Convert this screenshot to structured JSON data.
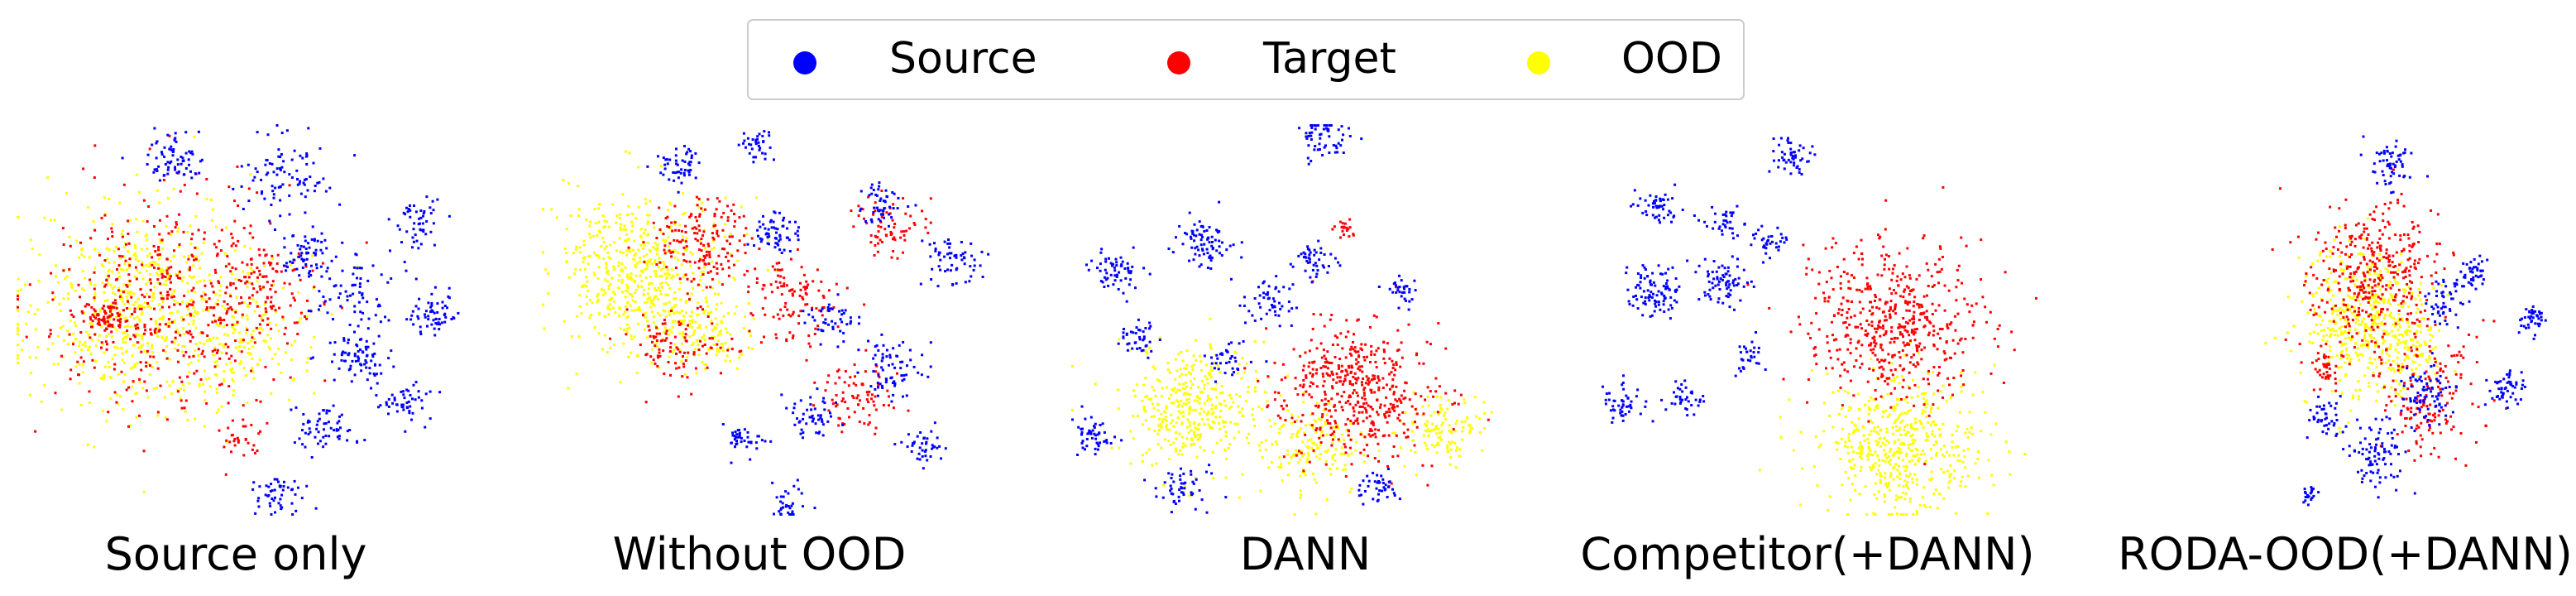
{
  "legend": {
    "placement": "top-center",
    "items": [
      {
        "label": "Source",
        "color": "#0000ff"
      },
      {
        "label": "Target",
        "color": "#ff0000"
      },
      {
        "label": "OOD",
        "color": "#ffff00"
      }
    ]
  },
  "chart_data": [
    {
      "type": "scatter",
      "title": "",
      "caption": "Source only",
      "axes": "off",
      "series": [
        {
          "name": "Source",
          "color": "#0000ff",
          "clusters": [
            {
              "cx": 0.35,
              "cy": 0.08,
              "r": 0.06,
              "n": 70
            },
            {
              "cx": 0.6,
              "cy": 0.13,
              "r": 0.1,
              "n": 90
            },
            {
              "cx": 0.65,
              "cy": 0.33,
              "r": 0.06,
              "n": 60
            },
            {
              "cx": 0.9,
              "cy": 0.25,
              "r": 0.06,
              "n": 50
            },
            {
              "cx": 0.93,
              "cy": 0.48,
              "r": 0.06,
              "n": 60
            },
            {
              "cx": 0.77,
              "cy": 0.6,
              "r": 0.08,
              "n": 80
            },
            {
              "cx": 0.87,
              "cy": 0.72,
              "r": 0.06,
              "n": 50
            },
            {
              "cx": 0.68,
              "cy": 0.78,
              "r": 0.07,
              "n": 60
            },
            {
              "cx": 0.58,
              "cy": 0.95,
              "r": 0.06,
              "n": 50
            },
            {
              "cx": 0.75,
              "cy": 0.42,
              "r": 0.1,
              "n": 70
            }
          ]
        },
        {
          "name": "Target",
          "color": "#ff0000",
          "clusters": [
            {
              "cx": 0.35,
              "cy": 0.45,
              "r": 0.28,
              "n": 420
            },
            {
              "cx": 0.2,
              "cy": 0.5,
              "r": 0.05,
              "n": 80
            },
            {
              "cx": 0.55,
              "cy": 0.4,
              "r": 0.12,
              "n": 100
            },
            {
              "cx": 0.5,
              "cy": 0.8,
              "r": 0.05,
              "n": 30
            }
          ]
        },
        {
          "name": "OOD",
          "color": "#ffff00",
          "clusters": [
            {
              "cx": 0.28,
              "cy": 0.48,
              "r": 0.26,
              "n": 650
            },
            {
              "cx": 0.5,
              "cy": 0.55,
              "r": 0.15,
              "n": 120
            }
          ]
        }
      ]
    },
    {
      "type": "scatter",
      "title": "",
      "caption": "Without OOD",
      "axes": "off",
      "series": [
        {
          "name": "Source",
          "color": "#0000ff",
          "clusters": [
            {
              "cx": 0.3,
              "cy": 0.1,
              "r": 0.05,
              "n": 50
            },
            {
              "cx": 0.48,
              "cy": 0.05,
              "r": 0.04,
              "n": 35
            },
            {
              "cx": 0.52,
              "cy": 0.28,
              "r": 0.06,
              "n": 60
            },
            {
              "cx": 0.75,
              "cy": 0.2,
              "r": 0.06,
              "n": 50
            },
            {
              "cx": 0.92,
              "cy": 0.35,
              "r": 0.07,
              "n": 60
            },
            {
              "cx": 0.65,
              "cy": 0.5,
              "r": 0.06,
              "n": 45
            },
            {
              "cx": 0.78,
              "cy": 0.62,
              "r": 0.08,
              "n": 70
            },
            {
              "cx": 0.6,
              "cy": 0.75,
              "r": 0.06,
              "n": 50
            },
            {
              "cx": 0.85,
              "cy": 0.82,
              "r": 0.05,
              "n": 40
            },
            {
              "cx": 0.45,
              "cy": 0.8,
              "r": 0.05,
              "n": 40
            },
            {
              "cx": 0.55,
              "cy": 0.97,
              "r": 0.05,
              "n": 35
            }
          ]
        },
        {
          "name": "Target",
          "color": "#ff0000",
          "clusters": [
            {
              "cx": 0.35,
              "cy": 0.3,
              "r": 0.12,
              "n": 160
            },
            {
              "cx": 0.55,
              "cy": 0.45,
              "r": 0.12,
              "n": 110
            },
            {
              "cx": 0.78,
              "cy": 0.25,
              "r": 0.08,
              "n": 70
            },
            {
              "cx": 0.7,
              "cy": 0.7,
              "r": 0.1,
              "n": 80
            },
            {
              "cx": 0.3,
              "cy": 0.55,
              "r": 0.12,
              "n": 100
            }
          ]
        },
        {
          "name": "OOD",
          "color": "#ffff00",
          "clusters": [
            {
              "cx": 0.22,
              "cy": 0.38,
              "r": 0.19,
              "n": 540
            },
            {
              "cx": 0.35,
              "cy": 0.55,
              "r": 0.1,
              "n": 120
            }
          ]
        }
      ]
    },
    {
      "type": "scatter",
      "title": "",
      "caption": "DANN",
      "axes": "off",
      "series": [
        {
          "name": "Source",
          "color": "#0000ff",
          "clusters": [
            {
              "cx": 0.58,
              "cy": 0.03,
              "r": 0.06,
              "n": 60
            },
            {
              "cx": 0.3,
              "cy": 0.3,
              "r": 0.07,
              "n": 80
            },
            {
              "cx": 0.1,
              "cy": 0.37,
              "r": 0.06,
              "n": 60
            },
            {
              "cx": 0.55,
              "cy": 0.35,
              "r": 0.05,
              "n": 45
            },
            {
              "cx": 0.75,
              "cy": 0.42,
              "r": 0.04,
              "n": 30
            },
            {
              "cx": 0.45,
              "cy": 0.45,
              "r": 0.06,
              "n": 50
            },
            {
              "cx": 0.15,
              "cy": 0.55,
              "r": 0.05,
              "n": 40
            },
            {
              "cx": 0.05,
              "cy": 0.8,
              "r": 0.05,
              "n": 50
            },
            {
              "cx": 0.25,
              "cy": 0.93,
              "r": 0.06,
              "n": 50
            },
            {
              "cx": 0.7,
              "cy": 0.93,
              "r": 0.05,
              "n": 40
            },
            {
              "cx": 0.35,
              "cy": 0.6,
              "r": 0.05,
              "n": 35
            }
          ]
        },
        {
          "name": "Target",
          "color": "#ff0000",
          "clusters": [
            {
              "cx": 0.65,
              "cy": 0.68,
              "r": 0.18,
              "n": 480
            },
            {
              "cx": 0.62,
              "cy": 0.27,
              "r": 0.03,
              "n": 20
            }
          ]
        },
        {
          "name": "OOD",
          "color": "#ffff00",
          "clusters": [
            {
              "cx": 0.28,
              "cy": 0.72,
              "r": 0.16,
              "n": 380
            },
            {
              "cx": 0.55,
              "cy": 0.83,
              "r": 0.12,
              "n": 150
            },
            {
              "cx": 0.85,
              "cy": 0.78,
              "r": 0.1,
              "n": 120
            }
          ]
        }
      ]
    },
    {
      "type": "scatter",
      "title": "",
      "caption": "Competitor(+DANN)",
      "axes": "off",
      "series": [
        {
          "name": "Source",
          "color": "#0000ff",
          "clusters": [
            {
              "cx": 0.45,
              "cy": 0.08,
              "r": 0.05,
              "n": 50
            },
            {
              "cx": 0.15,
              "cy": 0.2,
              "r": 0.05,
              "n": 50
            },
            {
              "cx": 0.3,
              "cy": 0.25,
              "r": 0.04,
              "n": 35
            },
            {
              "cx": 0.15,
              "cy": 0.42,
              "r": 0.07,
              "n": 100
            },
            {
              "cx": 0.3,
              "cy": 0.4,
              "r": 0.06,
              "n": 70
            },
            {
              "cx": 0.4,
              "cy": 0.3,
              "r": 0.04,
              "n": 35
            },
            {
              "cx": 0.08,
              "cy": 0.72,
              "r": 0.05,
              "n": 50
            },
            {
              "cx": 0.22,
              "cy": 0.7,
              "r": 0.04,
              "n": 35
            },
            {
              "cx": 0.35,
              "cy": 0.6,
              "r": 0.04,
              "n": 30
            }
          ]
        },
        {
          "name": "Target",
          "color": "#ff0000",
          "clusters": [
            {
              "cx": 0.68,
              "cy": 0.5,
              "r": 0.2,
              "n": 520
            }
          ]
        },
        {
          "name": "OOD",
          "color": "#ffff00",
          "clusters": [
            {
              "cx": 0.7,
              "cy": 0.82,
              "r": 0.18,
              "n": 520
            }
          ]
        }
      ]
    },
    {
      "type": "scatter",
      "title": "",
      "caption": "RODA-OOD(+DANN)",
      "axes": "off",
      "series": [
        {
          "name": "Source",
          "color": "#0000ff",
          "clusters": [
            {
              "cx": 0.5,
              "cy": 0.1,
              "r": 0.06,
              "n": 60
            },
            {
              "cx": 0.75,
              "cy": 0.38,
              "r": 0.04,
              "n": 40
            },
            {
              "cx": 0.93,
              "cy": 0.5,
              "r": 0.04,
              "n": 40
            },
            {
              "cx": 0.85,
              "cy": 0.68,
              "r": 0.05,
              "n": 50
            },
            {
              "cx": 0.6,
              "cy": 0.7,
              "r": 0.08,
              "n": 80
            },
            {
              "cx": 0.45,
              "cy": 0.85,
              "r": 0.1,
              "n": 90
            },
            {
              "cx": 0.3,
              "cy": 0.75,
              "r": 0.05,
              "n": 40
            },
            {
              "cx": 0.25,
              "cy": 0.95,
              "r": 0.03,
              "n": 20
            },
            {
              "cx": 0.65,
              "cy": 0.45,
              "r": 0.06,
              "n": 50
            }
          ]
        },
        {
          "name": "Target",
          "color": "#ff0000",
          "clusters": [
            {
              "cx": 0.45,
              "cy": 0.4,
              "r": 0.2,
              "n": 380
            },
            {
              "cx": 0.6,
              "cy": 0.7,
              "r": 0.15,
              "n": 150
            },
            {
              "cx": 0.3,
              "cy": 0.62,
              "r": 0.04,
              "n": 40
            }
          ]
        },
        {
          "name": "OOD",
          "color": "#ffff00",
          "clusters": [
            {
              "cx": 0.4,
              "cy": 0.5,
              "r": 0.18,
              "n": 420
            },
            {
              "cx": 0.55,
              "cy": 0.55,
              "r": 0.12,
              "n": 120
            }
          ]
        }
      ]
    }
  ]
}
